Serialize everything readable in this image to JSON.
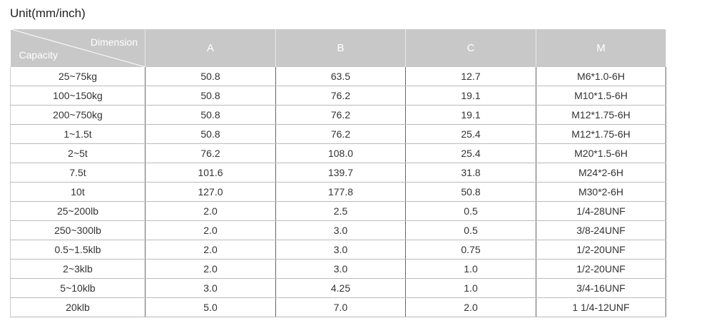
{
  "header": {
    "title": "Unit(mm/inch)"
  },
  "table": {
    "corner": {
      "column_header": "Dimension",
      "row_header": "Capacity"
    },
    "columns": [
      "A",
      "B",
      "C",
      "M"
    ],
    "rows": [
      [
        "25~75kg",
        "50.8",
        "63.5",
        "12.7",
        "M6*1.0-6H"
      ],
      [
        "100~150kg",
        "50.8",
        "76.2",
        "19.1",
        "M10*1.5-6H"
      ],
      [
        "200~750kg",
        "50.8",
        "76.2",
        "19.1",
        "M12*1.75-6H"
      ],
      [
        "1~1.5t",
        "50.8",
        "76.2",
        "25.4",
        "M12*1.75-6H"
      ],
      [
        "2~5t",
        "76.2",
        "108.0",
        "25.4",
        "M20*1.5-6H"
      ],
      [
        "7.5t",
        "101.6",
        "139.7",
        "31.8",
        "M24*2-6H"
      ],
      [
        "10t",
        "127.0",
        "177.8",
        "50.8",
        "M30*2-6H"
      ],
      [
        "25~200lb",
        "2.0",
        "2.5",
        "0.5",
        "1/4-28UNF"
      ],
      [
        "250~300lb",
        "2.0",
        "3.0",
        "0.5",
        "3/8-24UNF"
      ],
      [
        "0.5~1.5klb",
        "2.0",
        "3.0",
        "0.75",
        "1/2-20UNF"
      ],
      [
        "2~3klb",
        "2.0",
        "3.0",
        "1.0",
        "1/2-20UNF"
      ],
      [
        "5~10klb",
        "3.0",
        "4.25",
        "1.0",
        "3/4-16UNF"
      ],
      [
        "20klb",
        "5.0",
        "7.0",
        "2.0",
        "1 1/4-12UNF"
      ]
    ]
  }
}
